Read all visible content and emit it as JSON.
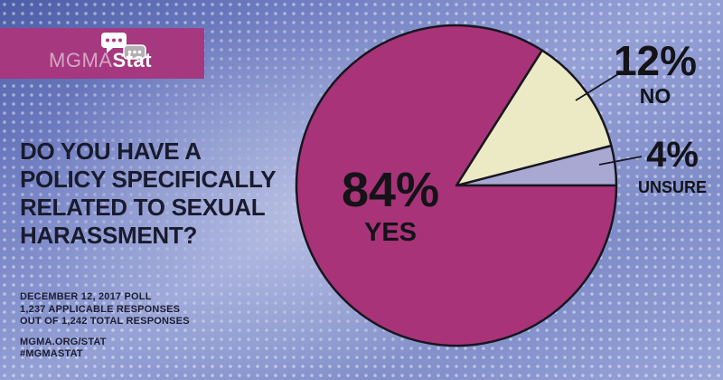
{
  "logo": {
    "brand": "MGMA",
    "product": "Stat",
    "banner_color": "#a5387e",
    "bubble_gray": "#b2b0b2"
  },
  "question": {
    "text": "DO YOU HAVE A\nPOLICY SPECIFICALLY\nRELATED TO SEXUAL\nHARASSMENT?"
  },
  "footer": {
    "poll_details": "DECEMBER 12, 2017 POLL\n1,237 APPLICABLE RESPONSES\nOUT OF 1,242 TOTAL RESPONSES",
    "links": "MGMA.ORG/STAT\n#MGMASTAT"
  },
  "chart_data": {
    "type": "pie",
    "title": "DO YOU HAVE A POLICY SPECIFICALLY RELATED TO SEXUAL HARASSMENT?",
    "poll_date": "DECEMBER 12, 2017",
    "applicable_responses": "1,237",
    "total_responses": "1,242",
    "slices": [
      {
        "label": "YES",
        "value": 84,
        "pct_label": "84%",
        "color": "#a93378",
        "label_placement": "inside"
      },
      {
        "label": "NO",
        "value": 12,
        "pct_label": "12%",
        "color": "#ece9c5",
        "label_placement": "outside-callout"
      },
      {
        "label": "UNSURE",
        "value": 4,
        "pct_label": "4%",
        "color": "#a8a8d2",
        "label_placement": "outside-callout"
      }
    ],
    "start_angle_deg": 0,
    "direction": "counterclockwise",
    "outline_color": "#17171f",
    "legend": "none"
  }
}
